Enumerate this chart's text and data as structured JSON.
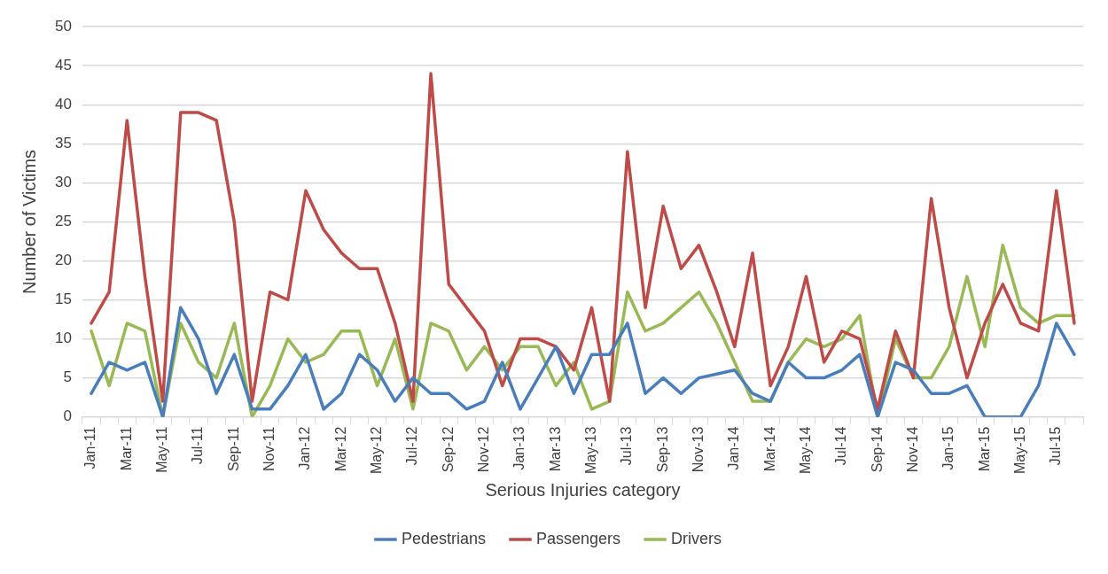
{
  "chart_data": {
    "type": "line",
    "xlabel": "Serious Injuries category",
    "ylabel": "Number of Victims",
    "categories": [
      "Jan-11",
      null,
      "Mar-11",
      null,
      "May-11",
      null,
      "Jul-11",
      null,
      "Sep-11",
      null,
      "Nov-11",
      null,
      "Jan-12",
      null,
      "Mar-12",
      null,
      "May-12",
      null,
      "Jul-12",
      null,
      "Sep-12",
      null,
      "Nov-12",
      null,
      "Jan-13",
      null,
      "Mar-13",
      null,
      "May-13",
      null,
      "Jul-13",
      null,
      "Sep-13",
      null,
      "Nov-13",
      null,
      "Jan-14",
      null,
      "Mar-14",
      null,
      "May-14",
      null,
      "Jul-14",
      null,
      "Sep-14",
      null,
      "Nov-14",
      null,
      "Jan-15",
      null,
      "Mar-15",
      null,
      "May-15",
      null,
      "Jul-15",
      null
    ],
    "series": [
      {
        "name": "Pedestrians",
        "color": "#4a7ebb",
        "values": [
          3,
          7,
          6,
          7,
          0,
          14,
          10,
          3,
          8,
          1,
          1,
          4,
          8,
          1,
          3,
          8,
          6,
          2,
          5,
          3,
          3,
          1,
          2,
          7,
          1,
          5,
          9,
          3,
          8,
          8,
          12,
          3,
          5,
          3,
          5,
          5.5,
          6,
          3,
          2,
          7,
          5,
          5,
          6,
          8,
          0,
          7,
          6,
          3,
          3,
          4,
          0,
          0,
          0,
          4,
          12,
          8
        ]
      },
      {
        "name": "Passengers",
        "color": "#be4b48",
        "values": [
          12,
          16,
          38,
          18,
          2,
          39,
          39,
          38,
          25,
          2,
          16,
          15,
          29,
          24,
          21,
          19,
          19,
          12,
          2,
          44,
          17,
          14,
          11,
          4,
          10,
          10,
          9,
          6,
          14,
          2,
          34,
          14,
          27,
          19,
          22,
          16,
          9,
          21,
          4,
          9,
          18,
          7,
          11,
          10,
          1,
          11,
          5,
          28,
          14,
          5,
          12,
          17,
          12,
          11,
          29,
          12
        ]
      },
      {
        "name": "Drivers",
        "color": "#98b954",
        "values": [
          11,
          4,
          12,
          11,
          0,
          12,
          7,
          5,
          12,
          0,
          4,
          10,
          7,
          8,
          11,
          11,
          4,
          10,
          1,
          12,
          11,
          6,
          9,
          6,
          9,
          9,
          4,
          7,
          1,
          2,
          16,
          11,
          12,
          14,
          16,
          12,
          7,
          2,
          2,
          7,
          10,
          9,
          10,
          13,
          0,
          10,
          5,
          5,
          9,
          18,
          9,
          22,
          14,
          12,
          13,
          13
        ]
      }
    ],
    "ylim": [
      0,
      50
    ],
    "yticks": [
      0,
      5,
      10,
      15,
      20,
      25,
      30,
      35,
      40,
      45,
      50
    ],
    "grid": "y",
    "legend": "bottom",
    "marker": "none",
    "line_style": "solid"
  }
}
